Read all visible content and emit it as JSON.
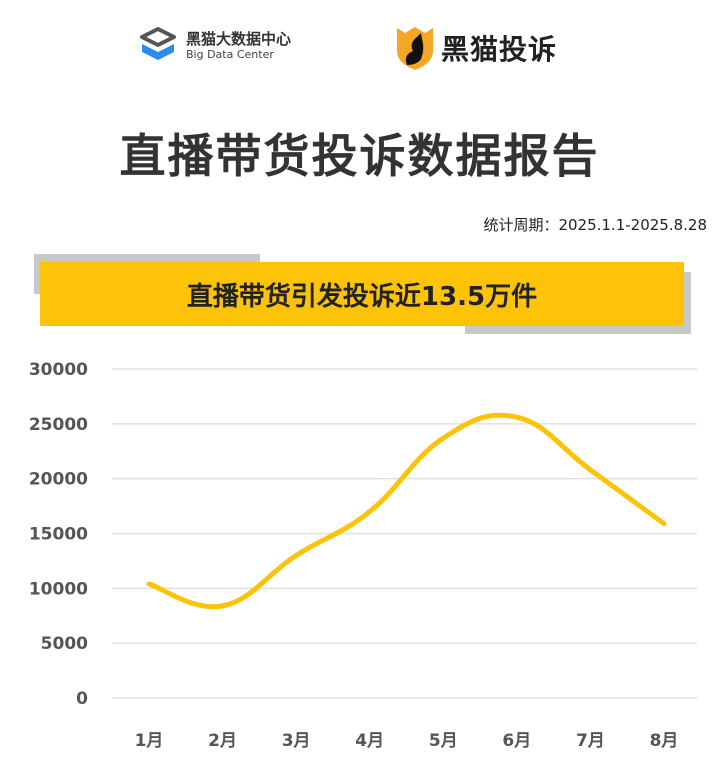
{
  "header": {
    "logo_left_cn": "黑猫大数据中心",
    "logo_left_en": "Big Data Center",
    "logo_right": "黑猫投诉",
    "title": "直播带货投诉数据报告",
    "period": "统计周期：2025.1.1-2025.8.28",
    "banner": "直播带货引发投诉近13.5万件"
  },
  "colors": {
    "line": "#fcc309",
    "banner": "#fcc309",
    "grid": "#e0e0e0",
    "logo_blue": "#2b8cf0"
  },
  "chart_data": {
    "type": "line",
    "title": "",
    "xlabel": "",
    "ylabel": "",
    "categories": [
      "1月",
      "2月",
      "3月",
      "4月",
      "5月",
      "6月",
      "7月",
      "8月"
    ],
    "values": [
      10400,
      8400,
      13000,
      17000,
      23700,
      25600,
      20800,
      15900
    ],
    "ylim": [
      0,
      30000
    ],
    "yticks": [
      "0",
      "5000",
      "10000",
      "15000",
      "20000",
      "25000",
      "30000"
    ],
    "grid": true,
    "smooth": true
  }
}
